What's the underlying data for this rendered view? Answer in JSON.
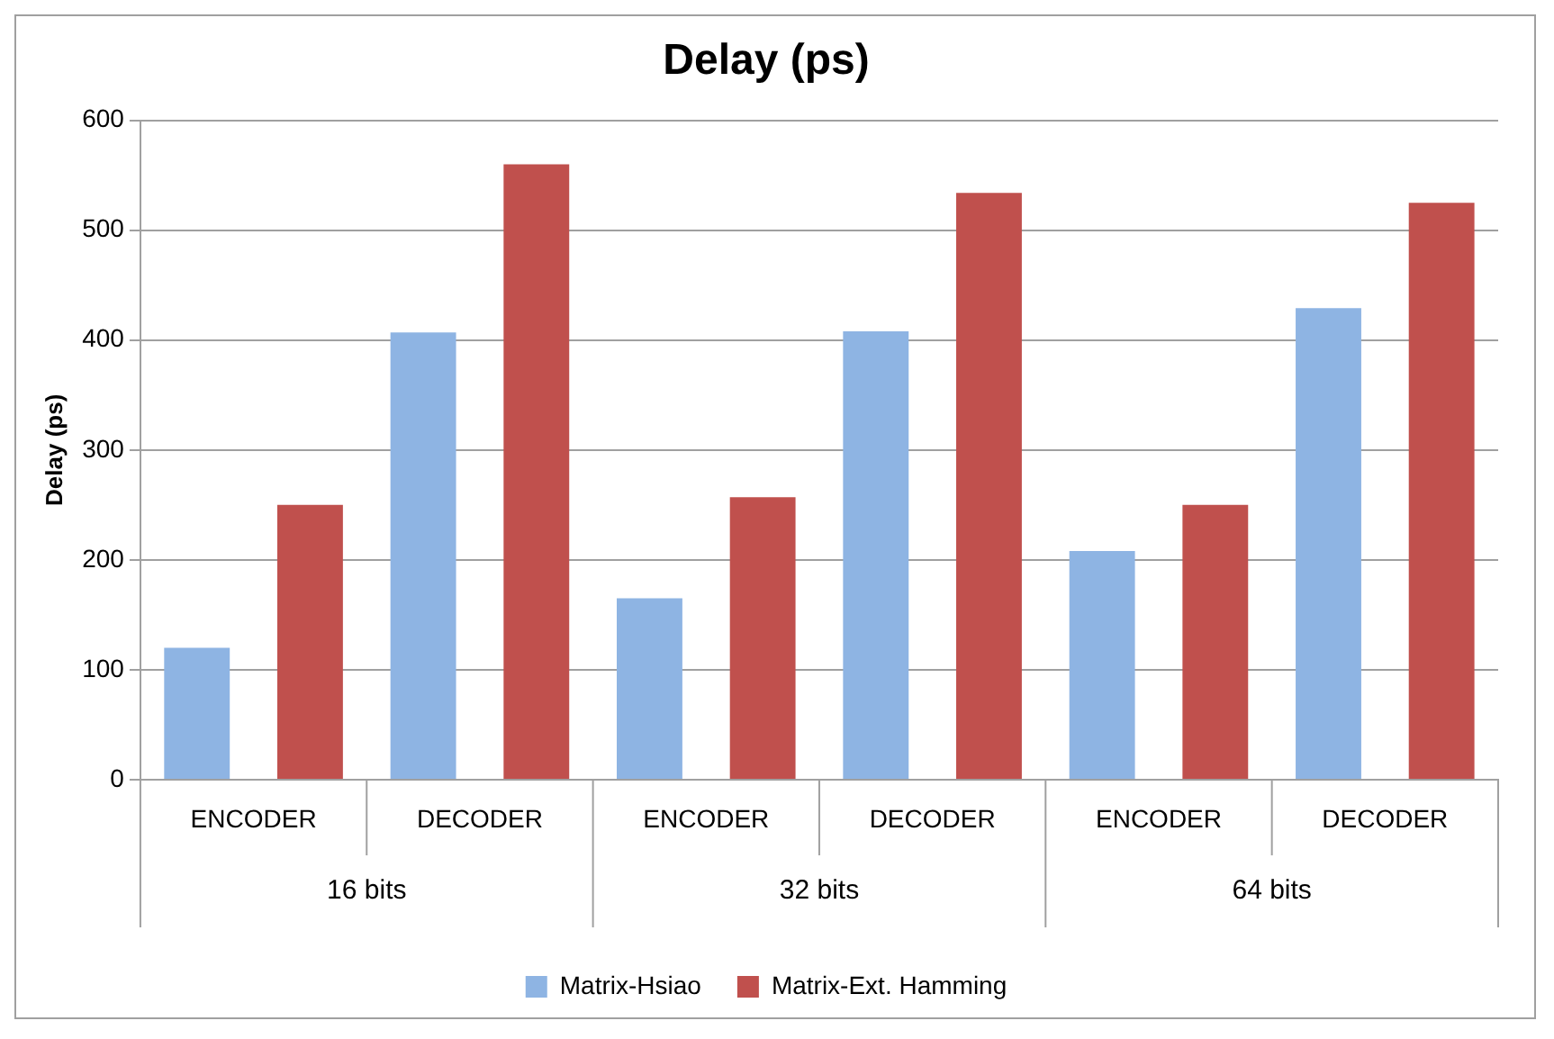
{
  "chart_data": {
    "type": "bar",
    "title": "Delay (ps)",
    "ylabel": "Delay (ps)",
    "categories": [
      "ENCODER",
      "DECODER",
      "ENCODER",
      "DECODER",
      "ENCODER",
      "DECODER"
    ],
    "annotations": [
      "16 bits",
      "32 bits",
      "64 bits"
    ],
    "series": [
      {
        "name": "Matrix-Hsiao",
        "color": "#8eb4e3",
        "values": [
          120,
          407,
          165,
          408,
          208,
          429
        ]
      },
      {
        "name": "Matrix-Ext. Hamming",
        "color": "#c0504d",
        "values": [
          250,
          560,
          257,
          534,
          250,
          525
        ]
      }
    ],
    "ylim": [
      0,
      600
    ],
    "yticks": [
      0,
      100,
      200,
      300,
      400,
      500,
      600
    ],
    "grid": "y",
    "legend": "bottom"
  }
}
